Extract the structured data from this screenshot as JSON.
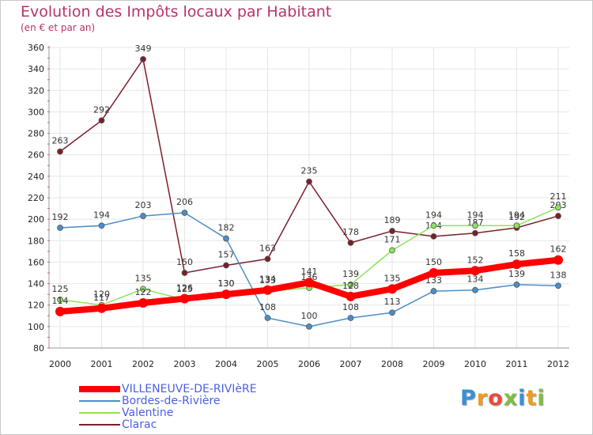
{
  "header": {
    "title": "Evolution des Impôts locaux par Habitant",
    "subtitle": "(en € et par an)"
  },
  "logo": {
    "text": "Proxiti",
    "colors": [
      "#3b8fd6",
      "#f39a1e",
      "#e84c3d",
      "#7fbf3f",
      "#3b8fd6",
      "#f39a1e",
      "#7fbf3f"
    ]
  },
  "chart_data": {
    "type": "line",
    "title": "Evolution des Impôts locaux par Habitant",
    "subtitle": "(en € et par an)",
    "xlabel": "",
    "ylabel": "",
    "ylim": [
      80,
      360
    ],
    "yticks": [
      80,
      100,
      120,
      140,
      160,
      180,
      200,
      220,
      240,
      260,
      280,
      300,
      320,
      340,
      360
    ],
    "grid": true,
    "legend_position": "bottom-left",
    "x": [
      "2000",
      "2001",
      "2002",
      "2003",
      "2004",
      "2005",
      "2006",
      "2007",
      "2008",
      "2009",
      "2010",
      "2011",
      "2012"
    ],
    "series": [
      {
        "name": "Clarac",
        "color": "#7a1f2b",
        "values": [
          263,
          292,
          349,
          150,
          157,
          163,
          235,
          178,
          189,
          184,
          187,
          192,
          203
        ]
      },
      {
        "name": "Bordes-de-Rivière",
        "color": "#4a8ec9",
        "values": [
          192,
          194,
          203,
          206,
          182,
          108,
          100,
          108,
          113,
          133,
          134,
          139,
          138
        ]
      },
      {
        "name": "Valentine",
        "color": "#8fe35a",
        "values": [
          125,
          120,
          135,
          125,
          130,
          133,
          136,
          139,
          171,
          194,
          194,
          194,
          211
        ]
      },
      {
        "name": "VILLENEUVE-DE-RIVIèRE",
        "color": "#ff0000",
        "values": [
          114,
          117,
          122,
          126,
          130,
          134,
          141,
          128,
          135,
          150,
          152,
          158,
          162
        ]
      }
    ]
  }
}
